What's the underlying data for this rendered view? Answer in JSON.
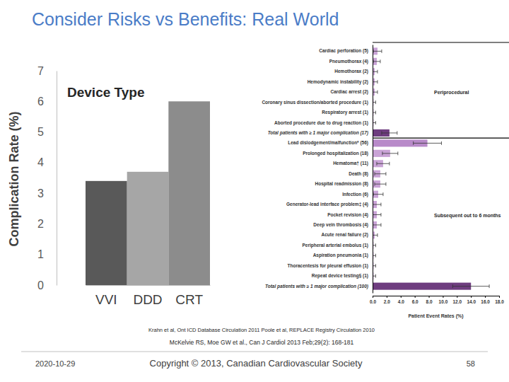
{
  "slide": {
    "title": "Consider Risks vs Benefits: Real World",
    "citations": [
      "Krahn et al, Ont ICD Database Circulation 2011 Poole et al, REPLACE Registry Circulation 2010",
      "McKelvie RS, Moe GW et al., Can J Cardiol 2013 Feb;29(2): 168-181"
    ],
    "date": "2020-10-29",
    "copyright": "Copyright © 2013, Canadian Cardiovascular Society",
    "page_number": 58
  },
  "chart_data": [
    {
      "type": "bar",
      "title": "Device Type",
      "categories": [
        "VVI",
        "DDD",
        "CRT"
      ],
      "values": [
        3.4,
        3.7,
        6.0
      ],
      "colors": [
        "#595959",
        "#a6a6a6",
        "#8c8c8c"
      ],
      "ylim": [
        0,
        7
      ],
      "yticks": [
        0,
        1,
        2,
        3,
        4,
        5,
        6,
        7
      ],
      "y_label": "Complication Rate (%)"
    },
    {
      "type": "bar",
      "orientation": "horizontal",
      "categories": [
        "Cardiac perforation (5)",
        "Pneumothorax (4)",
        "Hemothorax (2)",
        "Hemodynamic instability (2)",
        "Cardiac arrest (2)",
        "Coronary sinus dissection/aborted procedure (1)",
        "Respiratory arrest (1)",
        "Aborted procedure due to drug reaction (1)",
        "Total patients with ≥ 1 major complication (17)",
        "Lead dislodgement/malfunction* (56)",
        "Prolonged hospitalization (18)",
        "Hematoma† (11)",
        "Death (8)",
        "Hospital readmission (8)",
        "Infection (6)",
        "Generator-lead interface problem‡ (4)",
        "Pocket revision (4)",
        "Deep vein thrombosis (4)",
        "Acute renal failure (2)",
        "Peripheral arterial embolus (1)",
        "Aspiration pneumonia (1)",
        "Thoracentesis for pleural effusion (1)",
        "Repeat device testing§ (1)",
        "Total patients with ≥ 1 major complication (100)"
      ],
      "values": [
        0.7,
        0.6,
        0.3,
        0.3,
        0.3,
        0.14,
        0.14,
        0.14,
        2.4,
        7.8,
        2.5,
        1.5,
        1.1,
        1.1,
        0.8,
        0.6,
        0.6,
        0.6,
        0.3,
        0.14,
        0.14,
        0.14,
        0.14,
        14.0
      ],
      "errors": [
        0.6,
        0.5,
        0.4,
        0.4,
        0.4,
        0.3,
        0.3,
        0.3,
        1.1,
        2.0,
        1.1,
        0.9,
        0.8,
        0.8,
        0.7,
        0.6,
        0.6,
        0.6,
        0.4,
        0.3,
        0.3,
        0.3,
        0.3,
        2.6
      ],
      "colors": [
        "#c9a3d6",
        "#c9a3d6",
        "#c9a3d6",
        "#c9a3d6",
        "#c9a3d6",
        "#c9a3d6",
        "#c9a3d6",
        "#c9a3d6",
        "#6e3d7f",
        "#b88ac9",
        "#c9a3d6",
        "#c9a3d6",
        "#c9a3d6",
        "#c9a3d6",
        "#c9a3d6",
        "#c9a3d6",
        "#c9a3d6",
        "#c9a3d6",
        "#c9a3d6",
        "#c9a3d6",
        "#c9a3d6",
        "#c9a3d6",
        "#c9a3d6",
        "#6e3d7f"
      ],
      "xlim": [
        0,
        18
      ],
      "xticks": [
        {
          "value": 0,
          "label": "0.0"
        },
        {
          "value": 2,
          "label": "2.0"
        },
        {
          "value": 4,
          "label": "4.0"
        },
        {
          "value": 6,
          "label": "6.0"
        },
        {
          "value": 8,
          "label": "8.0"
        },
        {
          "value": 10,
          "label": "10.0"
        },
        {
          "value": 12,
          "label": "12.0"
        },
        {
          "value": 14,
          "label": "14.0"
        },
        {
          "value": 16,
          "label": "16.0"
        },
        {
          "value": 18,
          "label": "18.0"
        }
      ],
      "x_label": "Patient Event Rates (%)",
      "annotations": [
        "Periprocedural",
        "Subsequent out to 6 months"
      ]
    }
  ]
}
